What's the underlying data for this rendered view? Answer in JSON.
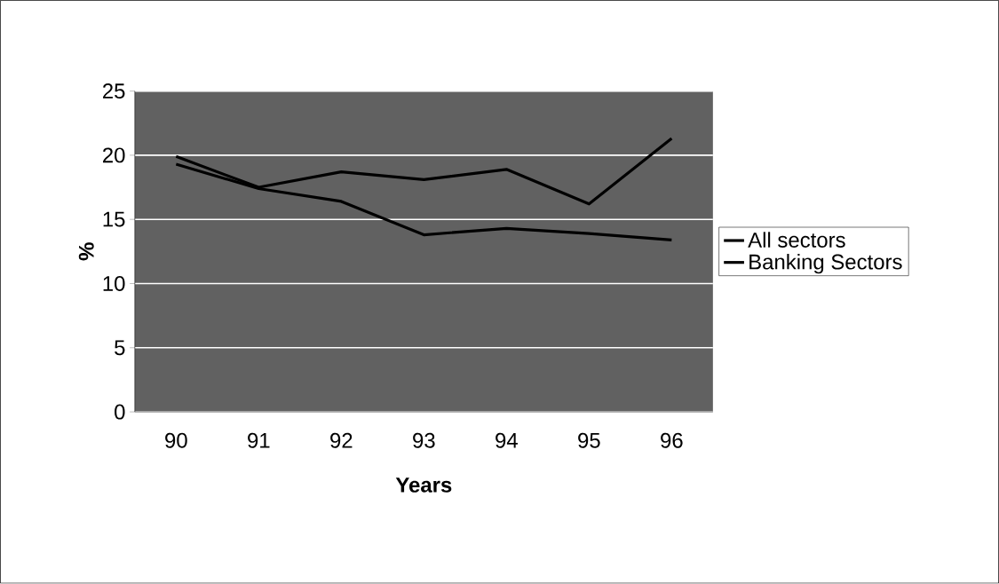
{
  "chart_data": {
    "type": "line",
    "xlabel": "Years",
    "ylabel": "%",
    "categories": [
      "90",
      "91",
      "92",
      "93",
      "94",
      "95",
      "96"
    ],
    "series": [
      {
        "name": "All sectors",
        "color": "#000000",
        "values": [
          19.9,
          17.5,
          18.7,
          18.1,
          18.9,
          16.2,
          21.3
        ]
      },
      {
        "name": "Banking Sectors",
        "color": "#000000",
        "values": [
          19.3,
          17.4,
          16.4,
          13.8,
          14.3,
          13.9,
          13.4
        ]
      }
    ],
    "ylim": [
      0,
      25
    ],
    "yticks": [
      0,
      5,
      10,
      15,
      20,
      25
    ],
    "grid": "y",
    "legend": "right",
    "marker": "none",
    "line_style": "solid"
  }
}
